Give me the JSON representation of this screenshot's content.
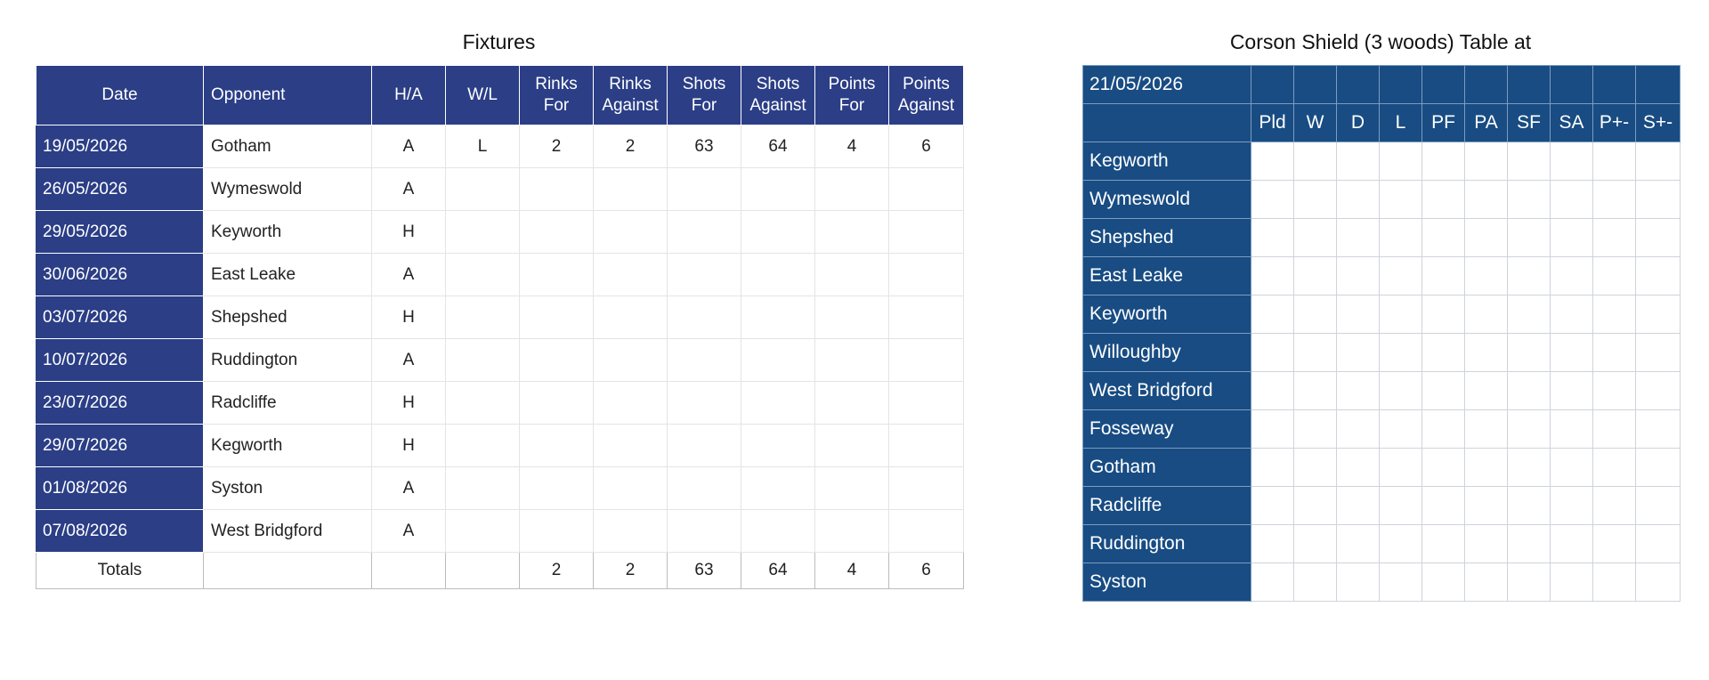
{
  "fixtures": {
    "title": "Fixtures",
    "headers": [
      {
        "line1": "Date",
        "line2": ""
      },
      {
        "line1": "Opponent",
        "line2": ""
      },
      {
        "line1": "H/A",
        "line2": ""
      },
      {
        "line1": "W/L",
        "line2": ""
      },
      {
        "line1": "Rinks",
        "line2": "For"
      },
      {
        "line1": "Rinks",
        "line2": "Against"
      },
      {
        "line1": "Shots",
        "line2": "For"
      },
      {
        "line1": "Shots",
        "line2": "Against"
      },
      {
        "line1": "Points",
        "line2": "For"
      },
      {
        "line1": "Points",
        "line2": "Against"
      }
    ],
    "rows": [
      {
        "date": "19/05/2026",
        "opponent": "Gotham",
        "ha": "A",
        "wl": "L",
        "rinks_for": "2",
        "rinks_against": "2",
        "shots_for": "63",
        "shots_against": "64",
        "points_for": "4",
        "points_against": "6"
      },
      {
        "date": "26/05/2026",
        "opponent": "Wymeswold",
        "ha": "A",
        "wl": "",
        "rinks_for": "",
        "rinks_against": "",
        "shots_for": "",
        "shots_against": "",
        "points_for": "",
        "points_against": ""
      },
      {
        "date": "29/05/2026",
        "opponent": "Keyworth",
        "ha": "H",
        "wl": "",
        "rinks_for": "",
        "rinks_against": "",
        "shots_for": "",
        "shots_against": "",
        "points_for": "",
        "points_against": ""
      },
      {
        "date": "30/06/2026",
        "opponent": "East Leake",
        "ha": "A",
        "wl": "",
        "rinks_for": "",
        "rinks_against": "",
        "shots_for": "",
        "shots_against": "",
        "points_for": "",
        "points_against": ""
      },
      {
        "date": "03/07/2026",
        "opponent": "Shepshed",
        "ha": "H",
        "wl": "",
        "rinks_for": "",
        "rinks_against": "",
        "shots_for": "",
        "shots_against": "",
        "points_for": "",
        "points_against": ""
      },
      {
        "date": "10/07/2026",
        "opponent": "Ruddington",
        "ha": "A",
        "wl": "",
        "rinks_for": "",
        "rinks_against": "",
        "shots_for": "",
        "shots_against": "",
        "points_for": "",
        "points_against": ""
      },
      {
        "date": "23/07/2026",
        "opponent": "Radcliffe",
        "ha": "H",
        "wl": "",
        "rinks_for": "",
        "rinks_against": "",
        "shots_for": "",
        "shots_against": "",
        "points_for": "",
        "points_against": ""
      },
      {
        "date": "29/07/2026",
        "opponent": "Kegworth",
        "ha": "H",
        "wl": "",
        "rinks_for": "",
        "rinks_against": "",
        "shots_for": "",
        "shots_against": "",
        "points_for": "",
        "points_against": ""
      },
      {
        "date": "01/08/2026",
        "opponent": "Syston",
        "ha": "A",
        "wl": "",
        "rinks_for": "",
        "rinks_against": "",
        "shots_for": "",
        "shots_against": "",
        "points_for": "",
        "points_against": ""
      },
      {
        "date": "07/08/2026",
        "opponent": "West Bridgford",
        "ha": "A",
        "wl": "",
        "rinks_for": "",
        "rinks_against": "",
        "shots_for": "",
        "shots_against": "",
        "points_for": "",
        "points_against": ""
      }
    ],
    "totals": {
      "label": "Totals",
      "rinks_for": "2",
      "rinks_against": "2",
      "shots_for": "63",
      "shots_against": "64",
      "points_for": "4",
      "points_against": "6"
    }
  },
  "league": {
    "title": "Corson Shield (3 woods) Table at",
    "date": "21/05/2026",
    "columns": [
      "Pld",
      "W",
      "D",
      "L",
      "PF",
      "PA",
      "SF",
      "SA",
      "P+-",
      "S+-"
    ],
    "teams": [
      "Kegworth",
      "Wymeswold",
      "Shepshed",
      "East Leake",
      "Keyworth",
      "Willoughby",
      "West Bridgford",
      "Fosseway",
      "Gotham",
      "Radcliffe",
      "Ruddington",
      "Syston"
    ]
  },
  "colors": {
    "fixtures_header": "#2b3e86",
    "league_header": "#184c83"
  }
}
